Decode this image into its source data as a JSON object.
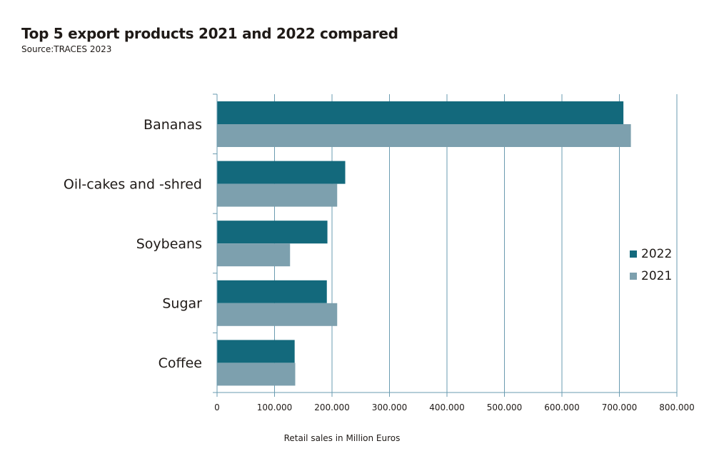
{
  "title": "Top 5 export products 2021 and 2022 compared",
  "subtitle": "Source:TRACES 2023",
  "colors": {
    "series_2022": "#13697c",
    "series_2021": "#7da0ae",
    "grid": "#6a9bb0"
  },
  "chart_data": {
    "type": "bar",
    "orientation": "horizontal",
    "categories": [
      "Bananas",
      "Oil-cakes and -shred",
      "Soybeans",
      "Sugar",
      "Coffee"
    ],
    "series": [
      {
        "name": "2022",
        "values": [
          707000,
          223000,
          192000,
          191000,
          135000
        ]
      },
      {
        "name": "2021",
        "values": [
          720000,
          209000,
          127000,
          209000,
          136000
        ]
      }
    ],
    "xlabel": "Retail sales in Million Euros",
    "xlim": [
      0,
      800000
    ],
    "xticks": [
      0,
      100000,
      200000,
      300000,
      400000,
      500000,
      600000,
      700000,
      800000
    ],
    "xtick_labels": [
      "0",
      "100.000",
      "200.000",
      "300.000",
      "400.000",
      "500.000",
      "600.000",
      "700.000",
      "800.000"
    ],
    "grid": true,
    "legend_position": "right"
  }
}
